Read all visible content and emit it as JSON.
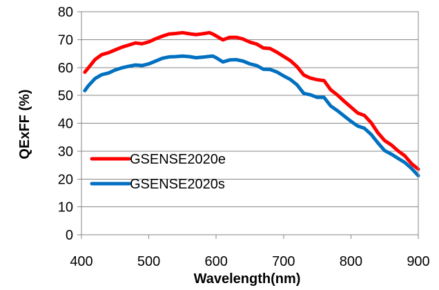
{
  "chart_data": {
    "type": "line",
    "title": "",
    "xlabel": "Wavelength(nm)",
    "ylabel": "QExFF (%)",
    "xlim": [
      400,
      900
    ],
    "ylim": [
      0,
      80
    ],
    "xticks": [
      400,
      500,
      600,
      700,
      800,
      900
    ],
    "yticks": [
      0,
      10,
      20,
      30,
      40,
      50,
      60,
      70,
      80
    ],
    "grid": "horizontal",
    "legend_position": "lower-left",
    "series": [
      {
        "name": "GSENSE2020e",
        "color": "#ff0000",
        "x": [
          405,
          410,
          420,
          430,
          440,
          450,
          460,
          470,
          480,
          490,
          500,
          510,
          520,
          530,
          540,
          550,
          560,
          570,
          580,
          590,
          595,
          600,
          610,
          620,
          630,
          640,
          650,
          660,
          670,
          680,
          690,
          700,
          710,
          720,
          730,
          740,
          750,
          760,
          770,
          780,
          790,
          800,
          810,
          820,
          830,
          840,
          850,
          860,
          870,
          880,
          890,
          900
        ],
        "y": [
          58.3,
          59.8,
          62.8,
          64.6,
          65.3,
          66.3,
          67.3,
          68.0,
          68.8,
          68.5,
          69.2,
          70.3,
          71.2,
          72.0,
          72.2,
          72.5,
          72.1,
          71.8,
          72.1,
          72.5,
          72.0,
          71.3,
          69.9,
          70.8,
          70.8,
          70.2,
          69.1,
          68.4,
          67.0,
          66.8,
          65.5,
          64.0,
          62.5,
          60.3,
          57.3,
          56.2,
          55.6,
          55.3,
          52.0,
          50.1,
          47.9,
          45.8,
          43.7,
          42.8,
          40.2,
          36.6,
          33.8,
          32.2,
          30.1,
          28.3,
          25.5,
          23.5
        ]
      },
      {
        "name": "GSENSE2020s",
        "color": "#0070c0",
        "x": [
          405,
          410,
          420,
          430,
          440,
          450,
          460,
          470,
          480,
          490,
          500,
          510,
          520,
          530,
          540,
          550,
          560,
          570,
          580,
          590,
          595,
          600,
          610,
          620,
          630,
          640,
          650,
          660,
          670,
          680,
          690,
          700,
          710,
          720,
          730,
          740,
          750,
          760,
          770,
          780,
          790,
          800,
          810,
          820,
          830,
          840,
          850,
          860,
          870,
          880,
          890,
          900
        ],
        "y": [
          51.7,
          53.4,
          56.0,
          57.4,
          58.0,
          59.1,
          59.9,
          60.4,
          60.9,
          60.7,
          61.3,
          62.3,
          63.3,
          63.8,
          63.9,
          64.1,
          63.9,
          63.5,
          63.7,
          64.0,
          64.1,
          63.5,
          62.0,
          62.7,
          62.8,
          62.3,
          61.3,
          60.7,
          59.4,
          59.3,
          58.4,
          57.0,
          55.7,
          53.8,
          50.7,
          50.2,
          49.3,
          49.3,
          46.2,
          44.5,
          42.6,
          40.7,
          39.0,
          38.2,
          36.0,
          33.0,
          30.2,
          28.9,
          27.4,
          25.9,
          23.8,
          21.2
        ]
      }
    ]
  }
}
